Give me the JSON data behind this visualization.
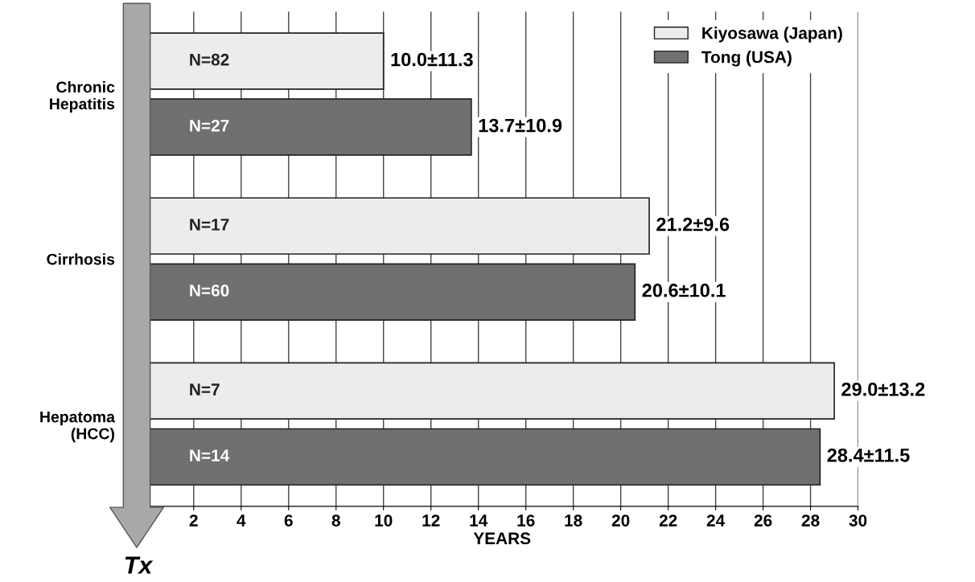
{
  "chart_data": {
    "type": "bar",
    "orientation": "horizontal",
    "xlabel": "YEARS",
    "categories": [
      "Chronic\nHepatitis",
      "Cirrhosis",
      "Hepatoma\n(HCC)"
    ],
    "series": [
      {
        "name": "Kiyosawa (Japan)",
        "color": "#ececec",
        "values": [
          10.0,
          21.2,
          29.0
        ],
        "value_labels": [
          "10.0±11.3",
          "21.2±9.6",
          "29.0±13.2"
        ]
      },
      {
        "name": "Tong (USA)",
        "color": "#707070",
        "values": [
          13.7,
          20.6,
          28.4
        ],
        "value_labels": [
          "13.7±10.9",
          "20.6±10.1",
          "28.4±11.5"
        ]
      }
    ],
    "xlim": [
      0,
      30
    ],
    "xticks": [
      2,
      4,
      6,
      8,
      10,
      12,
      14,
      16,
      18,
      20,
      22,
      24,
      26,
      28,
      30
    ],
    "grid": "x",
    "legend": "top right",
    "annotations": [
      "N=82",
      "N=27",
      "N=17",
      "N=60",
      "N=7",
      "N=14",
      "Tx"
    ]
  }
}
